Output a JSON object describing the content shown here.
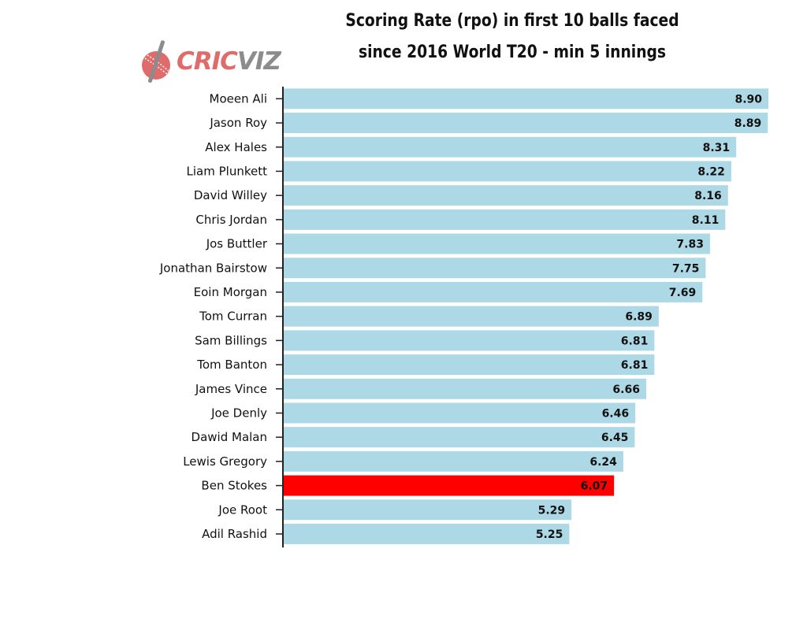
{
  "chart_data": {
    "type": "bar",
    "orientation": "horizontal",
    "title_lines": [
      "Scoring Rate (rpo) in first 10 balls faced",
      "since 2016 World T20 - min 5 innings"
    ],
    "categories": [
      "Moeen Ali",
      "Jason Roy",
      "Alex Hales",
      "Liam Plunkett",
      "David Willey",
      "Chris Jordan",
      "Jos Buttler",
      "Jonathan Bairstow",
      "Eoin Morgan",
      "Tom Curran",
      "Sam Billings",
      "Tom Banton",
      "James Vince",
      "Joe Denly",
      "Dawid Malan",
      "Lewis Gregory",
      "Ben Stokes",
      "Joe Root",
      "Adil Rashid"
    ],
    "values": [
      8.9,
      8.89,
      8.31,
      8.22,
      8.16,
      8.11,
      7.83,
      7.75,
      7.69,
      6.89,
      6.81,
      6.81,
      6.66,
      6.46,
      6.45,
      6.24,
      6.07,
      5.29,
      5.25
    ],
    "value_labels": [
      "8.90",
      "8.89",
      "8.31",
      "8.22",
      "8.16",
      "8.11",
      "7.83",
      "7.75",
      "7.69",
      "6.89",
      "6.81",
      "6.81",
      "6.66",
      "6.46",
      "6.45",
      "6.24",
      "6.07",
      "5.29",
      "5.25"
    ],
    "highlight": "Ben Stokes",
    "xlim": [
      0,
      8.9
    ],
    "grid": false,
    "colors": {
      "bar": "#add8e6",
      "highlight": "#ff0000",
      "axis": "#222222"
    }
  },
  "logo": {
    "text_part1": "CRIC",
    "text_part2": "VIZ"
  }
}
